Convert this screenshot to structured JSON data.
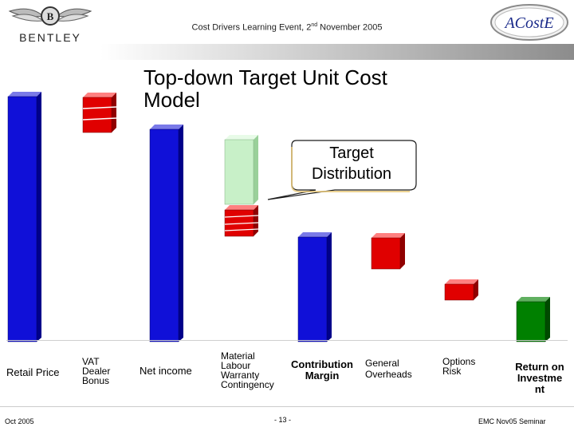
{
  "header": {
    "event_text": "Cost Drivers Learning Event, 2",
    "event_sup": "nd",
    "event_tail": " November 2005",
    "left_logo_text": "BENTLEY",
    "right_logo_text": "ACostE"
  },
  "slide": {
    "title_line1": "Top-down Target Unit Cost",
    "title_line2": "Model",
    "callout_line1": "Target",
    "callout_line2": "Distribution"
  },
  "labels": {
    "retail_price": "Retail Price",
    "vat": "VAT",
    "dealer": "Dealer",
    "bonus": "Bonus",
    "net_income": "Net income",
    "material": "Material",
    "labour": "Labour",
    "warranty": "Warranty",
    "contingency": "Contingency",
    "contribution": "Contribution",
    "margin": "Margin",
    "general": "General",
    "overheads": "Overheads",
    "options": "Options",
    "risk": "Risk",
    "return_l1": "Return on",
    "return_l2": "Investme",
    "return_l3": "nt"
  },
  "footer": {
    "left": "Oct 2005",
    "center": "- 13 -",
    "right": "EMC Nov05 Seminar"
  },
  "colors": {
    "blue": "#1010d8",
    "red": "#e00000",
    "lightgreen": "#c8f0c8",
    "green": "#008000"
  }
}
